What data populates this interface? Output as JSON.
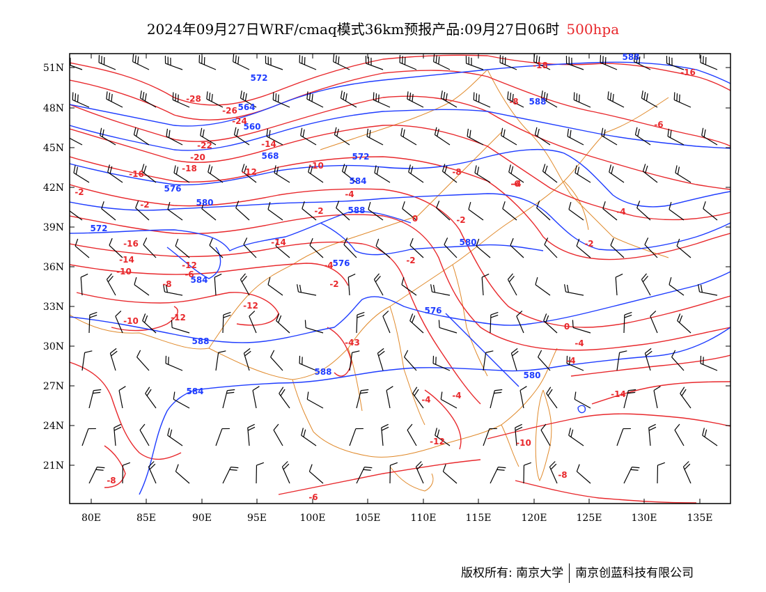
{
  "title": {
    "main": "2024年09月27日WRF/cmaq模式36km预报产品:09月27日06时",
    "level": "500hpa"
  },
  "colors": {
    "height_contour": "#1e3cff",
    "temperature_contour": "#e8282c",
    "border": "#e0892a",
    "wind_barb": "#000000"
  },
  "map": {
    "lon_ticks": [
      "80E",
      "85E",
      "90E",
      "95E",
      "100E",
      "105E",
      "110E",
      "115E",
      "120E",
      "125E",
      "130E",
      "135E"
    ],
    "lat_ticks": [
      "51N",
      "48N",
      "45N",
      "42N",
      "39N",
      "36N",
      "33N",
      "30N",
      "27N",
      "24N",
      "21N"
    ],
    "height_labels": [
      "588",
      "572",
      "564",
      "560",
      "568",
      "572",
      "576",
      "580",
      "584",
      "588",
      "572",
      "576",
      "580",
      "584",
      "588",
      "588",
      "576",
      "580",
      "584",
      "588"
    ],
    "temp_labels": [
      "-18",
      "-16",
      "-28",
      "-26",
      "-24",
      "-22",
      "-20",
      "-18",
      "-16",
      "-14",
      "-12",
      "-10",
      "-8",
      "-6",
      "-4",
      "-2",
      "0",
      "-2",
      "-14",
      "-16",
      "-14",
      "-12",
      "-10",
      "-8",
      "-6",
      "-4",
      "-2",
      "-12",
      "-12",
      "-10",
      "-8",
      "-6",
      "-4",
      "-2",
      "0",
      "-4",
      "-4",
      "-2",
      "-4",
      "-43",
      "-4",
      "-4",
      "-14",
      "-12",
      "-10",
      "-8",
      "-6",
      "-8",
      "-2",
      "-2",
      "-4",
      "-12"
    ]
  },
  "footer": {
    "copyright_label": "版权所有: 南京大学",
    "company": "南京创蓝科技有限公司"
  }
}
